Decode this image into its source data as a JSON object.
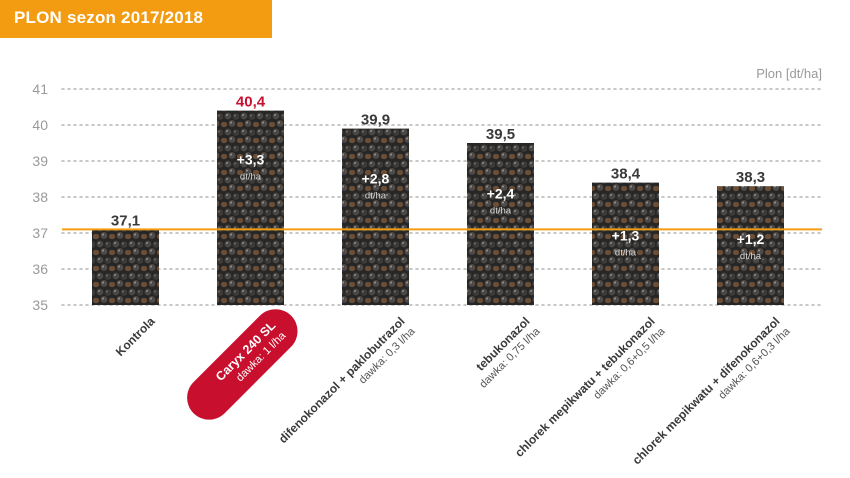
{
  "header": {
    "title": "PLON sezon 2017/2018"
  },
  "chart_data": {
    "type": "bar",
    "ylabel": "Plon [dt/ha]",
    "ylim": [
      35,
      41
    ],
    "yticks": [
      35,
      36,
      37,
      38,
      39,
      40,
      41
    ],
    "grid": true,
    "reference_line": 37.1,
    "categories": [
      {
        "name": "Kontrola",
        "dose": "",
        "highlight": false
      },
      {
        "name": "Caryx 240 SL",
        "dose": "dawka: 1 l/ha",
        "highlight": true
      },
      {
        "name": "difenokonazol + paklobutrazol",
        "dose": "dawka: 0,3 l/ha",
        "highlight": false
      },
      {
        "name": "tebukonazol",
        "dose": "dawka: 0,75 l/ha",
        "highlight": false
      },
      {
        "name": "chlorek mepikwatu + tebukonazol",
        "dose": "dawka: 0,6+0,5 l/ha",
        "highlight": false
      },
      {
        "name": "chlorek mepikwatu + difenokonazol",
        "dose": "dawka: 0,6+0,3 l/ha",
        "highlight": false
      }
    ],
    "values": [
      37.1,
      40.4,
      39.9,
      39.5,
      38.4,
      38.3
    ],
    "value_labels": [
      "37,1",
      "40,4",
      "39,9",
      "39,5",
      "38,4",
      "38,3"
    ],
    "increase_labels": [
      "",
      "+3,3",
      "+2,8",
      "+2,4",
      "+1,3",
      "+1,2"
    ],
    "increase_unit": "dt/ha",
    "colors": {
      "title_bg": "#f39c12",
      "reference_line": "#f39c12",
      "highlight_value": "#c8102e",
      "highlight_pill": "#c8102e",
      "text": "#3a3a3a",
      "axis_text": "#9a9a9a",
      "grid": "#b5b5b5"
    }
  }
}
